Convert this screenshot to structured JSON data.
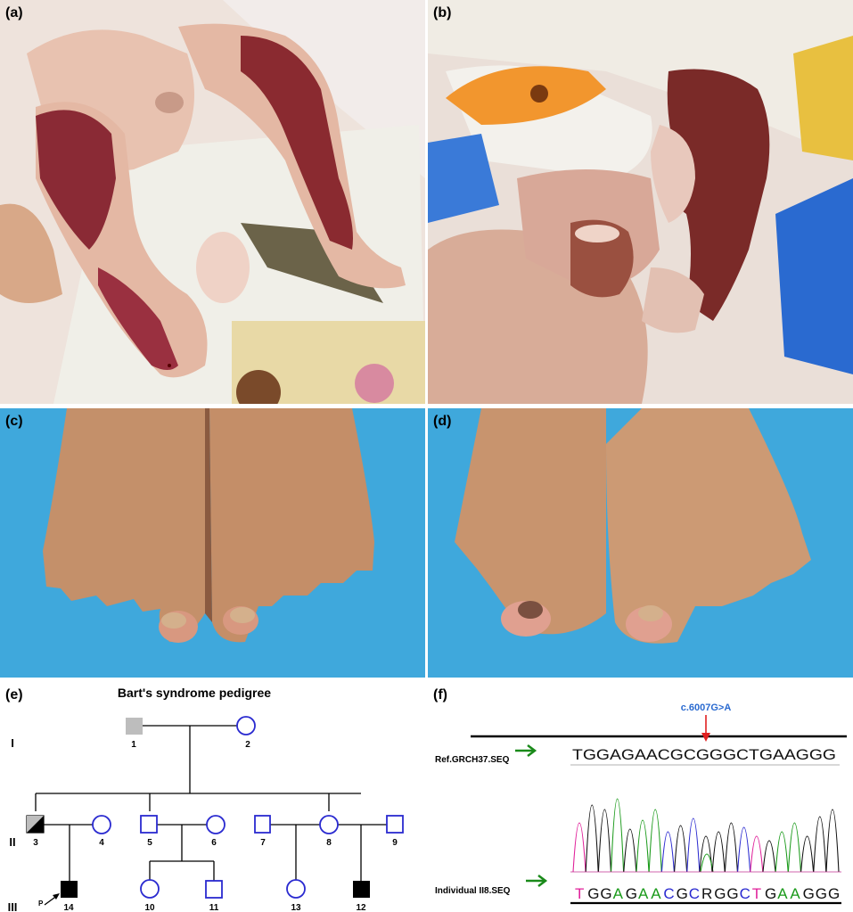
{
  "panels": {
    "a": {
      "label": "(a)"
    },
    "b": {
      "label": "(b)"
    },
    "c": {
      "label": "(c)"
    },
    "d": {
      "label": "(d)"
    },
    "e": {
      "label": "(e)"
    },
    "f": {
      "label": "(f)"
    }
  },
  "pedigree": {
    "title": "Bart's syndrome pedigree",
    "generations": [
      "I",
      "II",
      "III"
    ],
    "individuals": {
      "i1": "1",
      "i2": "2",
      "i3": "3",
      "i4": "4",
      "i5": "5",
      "i6": "6",
      "i7": "7",
      "i8": "8",
      "i9": "9",
      "i14": "14",
      "i10": "10",
      "i11": "11",
      "i13": "13",
      "i12": "12"
    },
    "proband_marker": "P"
  },
  "sequence": {
    "mutation": "c.6007G>A",
    "ref_label": "Ref.GRCH37.SEQ",
    "ref_seq": "TGGAGAACGCGGGCTGAAGGG",
    "ind_label": "Individual II8.SEQ",
    "ind_seq": "TGGAGAACGCRGGCTGAAGGG",
    "colors": {
      "A": "#1a9a1a",
      "C": "#2a2ad0",
      "G": "#111111",
      "T": "#e0209a",
      "R": "#111111",
      "arrow": "#e02020",
      "green_arrow": "#1a8a1a",
      "mutation_text": "#2a6ad0"
    }
  }
}
